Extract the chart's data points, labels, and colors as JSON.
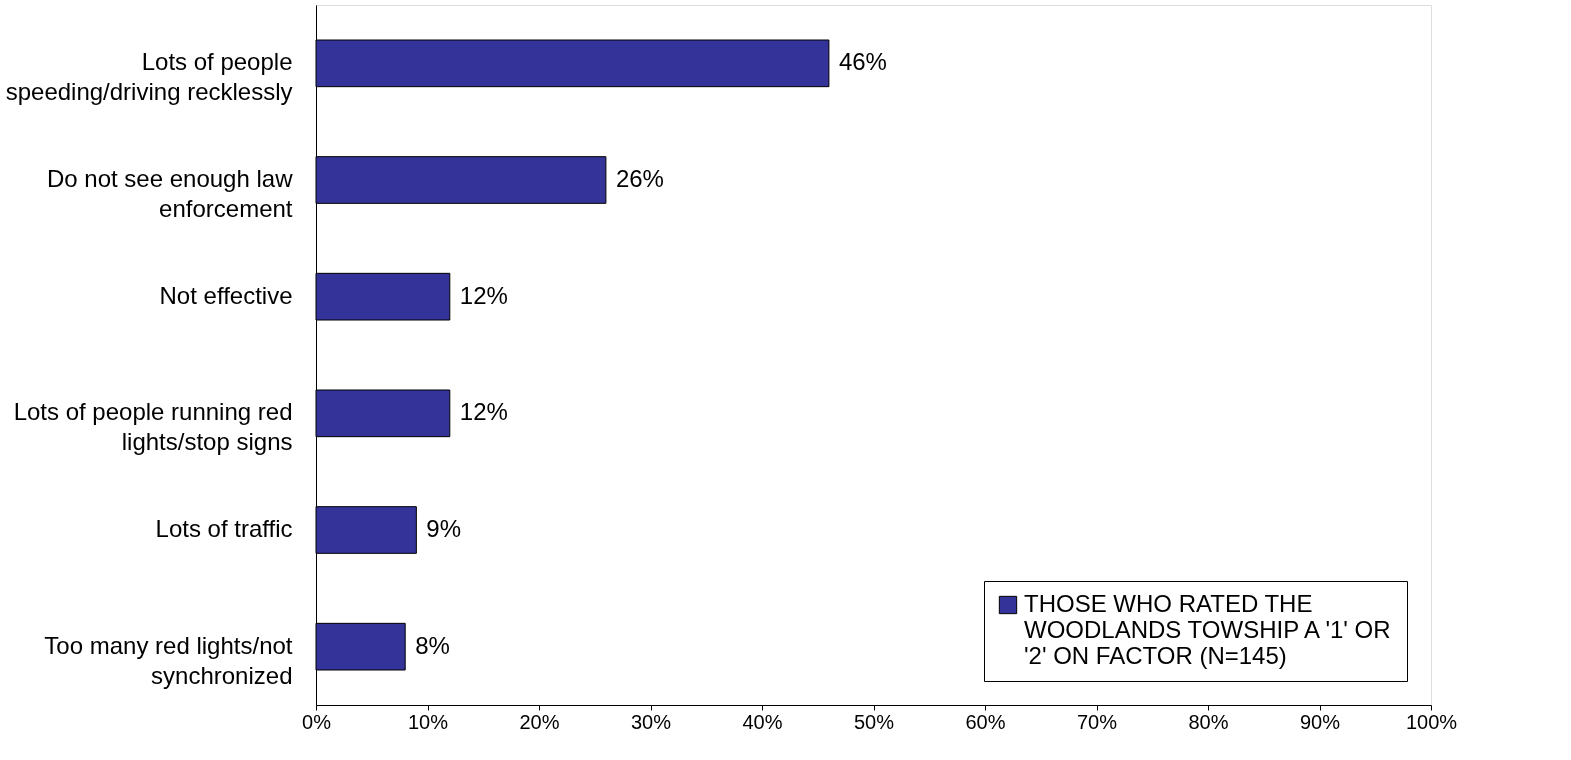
{
  "chart_data": {
    "type": "bar",
    "orientation": "horizontal",
    "categories": [
      "Lots of people speeding/driving recklessly",
      "Do not see enough law enforcement",
      "Not effective",
      "Lots of people running red lights/stop signs",
      "Lots of traffic",
      "Too many red lights/not synchronized"
    ],
    "series": [
      {
        "name": "THOSE WHO RATED THE WOODLANDS TOWSHIP A '1' OR '2' ON FACTOR (N=145)",
        "color": "#333399",
        "values": [
          46,
          26,
          12,
          12,
          9,
          8
        ],
        "value_labels": [
          "46%",
          "26%",
          "12%",
          "12%",
          "9%",
          "8%"
        ]
      }
    ],
    "xlim": [
      0,
      100
    ],
    "xticks": [
      {
        "value": 0,
        "label": "0%"
      },
      {
        "value": 10,
        "label": "10%"
      },
      {
        "value": 20,
        "label": "20%"
      },
      {
        "value": 30,
        "label": "30%"
      },
      {
        "value": 40,
        "label": "40%"
      },
      {
        "value": 50,
        "label": "50%"
      },
      {
        "value": 60,
        "label": "60%"
      },
      {
        "value": 70,
        "label": "70%"
      },
      {
        "value": 80,
        "label": "80%"
      },
      {
        "value": 90,
        "label": "90%"
      },
      {
        "value": 100,
        "label": "100%"
      }
    ],
    "grid": false,
    "legend": "bottom right"
  }
}
